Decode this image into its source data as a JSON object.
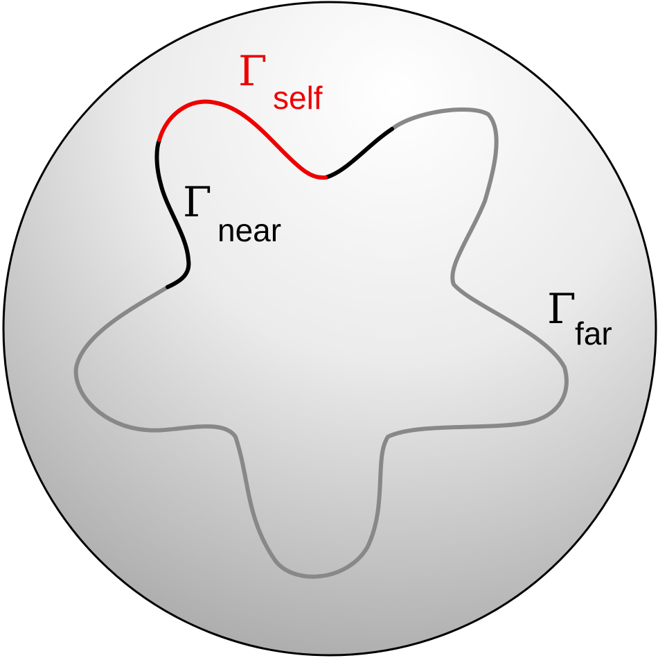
{
  "labels": {
    "self": {
      "symbol": "Γ",
      "subscript": "self"
    },
    "near": {
      "symbol": "Γ",
      "subscript": "near"
    },
    "far": {
      "symbol": "Γ",
      "subscript": "far"
    }
  },
  "colors": {
    "self": "#ee0000",
    "near": "#000000",
    "far": "#888888",
    "sphere_highlight": "#ffffff",
    "sphere_mid": "#ebebeb",
    "sphere_shadow": "#a9a9a9",
    "sphere_outline": "#000000"
  }
}
